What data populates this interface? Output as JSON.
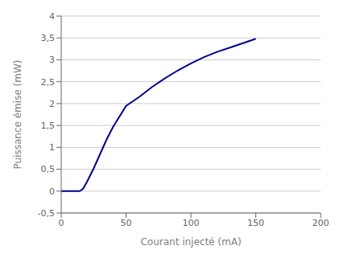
{
  "chart_data": {
    "type": "line",
    "xlabel": "Courant injecté (mA)",
    "ylabel": "Puissance émise (mW)",
    "x": [
      0,
      5,
      10,
      14,
      15,
      17,
      20,
      25,
      30,
      35,
      40,
      50,
      60,
      70,
      80,
      90,
      100,
      110,
      120,
      130,
      140,
      150
    ],
    "values": [
      0.0,
      0.0,
      0.0,
      0.0,
      0.01,
      0.06,
      0.22,
      0.52,
      0.85,
      1.18,
      1.47,
      1.95,
      2.15,
      2.38,
      2.58,
      2.76,
      2.92,
      3.06,
      3.18,
      3.28,
      3.38,
      3.48
    ],
    "color": "#00008B",
    "xlim": [
      0,
      200
    ],
    "ylim": [
      -0.5,
      4
    ],
    "xticks": [
      0,
      50,
      100,
      150,
      200
    ],
    "yticks": [
      {
        "value": -0.5,
        "label": "-0,5"
      },
      0,
      {
        "value": 0.5,
        "label": "0,5"
      },
      1,
      {
        "value": 1.5,
        "label": "1,5"
      },
      2,
      {
        "value": 2.5,
        "label": "2,5"
      },
      3,
      {
        "value": 3.5,
        "label": "3,5"
      },
      4
    ],
    "grid": "y"
  }
}
